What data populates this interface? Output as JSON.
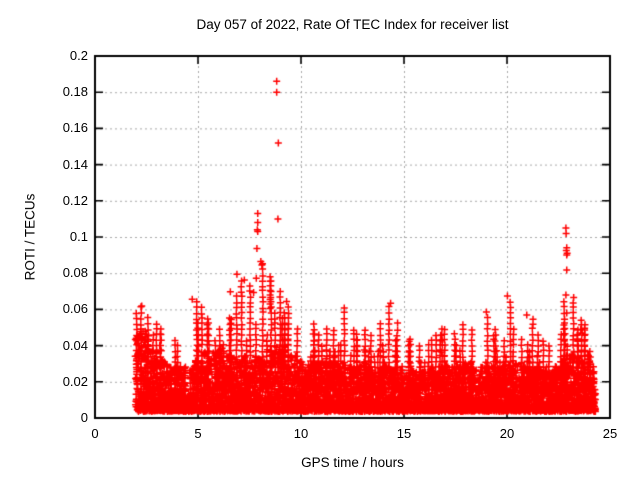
{
  "chart_data": {
    "type": "scatter",
    "title": "Day 057 of 2022, Rate Of TEC Index for receiver list",
    "xlabel": "GPS time / hours",
    "ylabel": "ROTI / TECUs",
    "xlim": [
      0,
      25
    ],
    "ylim": [
      0,
      0.2
    ],
    "xticks": [
      0,
      5,
      10,
      15,
      20,
      25
    ],
    "xtick_labels": [
      "0",
      "5",
      "10",
      "15",
      "20",
      "25"
    ],
    "yticks": [
      0,
      0.02,
      0.04,
      0.06,
      0.08,
      0.1,
      0.12,
      0.14,
      0.16,
      0.18,
      0.2
    ],
    "ytick_labels": [
      "0",
      "0.02",
      "0.04",
      "0.06",
      "0.08",
      "0.1",
      "0.12",
      "0.14",
      "0.16",
      "0.18",
      "0.2"
    ],
    "grid": {
      "on": true,
      "style": "dashed",
      "color": "#a8a8a8"
    },
    "legend": "none",
    "colors": {
      "marker": "#ff0000",
      "axis": "#000000",
      "text": "#000000",
      "background": "#ffffff"
    },
    "series": [
      {
        "name": "ROTI",
        "marker": "plus",
        "color": "#ff0000",
        "time_span_hours": [
          1.95,
          24.3
        ],
        "bins_format": [
          "t_start_hours",
          "t_width_hours",
          "dense_band_top_TECU",
          "spike_top_TECU"
        ],
        "density_bins": [
          [
            1.95,
            0.55,
            0.048,
            0.062
          ],
          [
            2.5,
            0.5,
            0.038,
            0.056
          ],
          [
            3.0,
            0.5,
            0.032,
            0.05
          ],
          [
            3.5,
            0.5,
            0.028,
            0.044
          ],
          [
            4.0,
            0.4,
            0.028,
            0.042
          ],
          [
            4.4,
            0.35,
            0.012,
            0.028
          ],
          [
            4.75,
            0.5,
            0.032,
            0.066
          ],
          [
            5.25,
            0.5,
            0.036,
            0.056
          ],
          [
            5.75,
            0.5,
            0.038,
            0.052
          ],
          [
            6.25,
            0.5,
            0.034,
            0.058
          ],
          [
            6.75,
            0.5,
            0.032,
            0.079
          ],
          [
            7.25,
            0.5,
            0.03,
            0.076
          ],
          [
            7.75,
            0.5,
            0.034,
            0.088
          ],
          [
            8.25,
            0.5,
            0.038,
            0.078
          ],
          [
            8.75,
            0.5,
            0.04,
            0.073
          ],
          [
            9.25,
            0.5,
            0.034,
            0.064
          ],
          [
            9.75,
            0.5,
            0.032,
            0.05
          ],
          [
            10.25,
            0.5,
            0.03,
            0.055
          ],
          [
            10.75,
            0.5,
            0.032,
            0.052
          ],
          [
            11.25,
            0.5,
            0.03,
            0.05
          ],
          [
            11.75,
            0.5,
            0.03,
            0.061
          ],
          [
            12.25,
            0.5,
            0.028,
            0.05
          ],
          [
            12.75,
            0.5,
            0.03,
            0.052
          ],
          [
            13.25,
            0.5,
            0.028,
            0.048
          ],
          [
            13.75,
            0.5,
            0.028,
            0.055
          ],
          [
            14.25,
            0.5,
            0.027,
            0.063
          ],
          [
            14.75,
            0.5,
            0.026,
            0.045
          ],
          [
            15.25,
            0.5,
            0.026,
            0.045
          ],
          [
            15.75,
            0.5,
            0.025,
            0.042
          ],
          [
            16.25,
            0.5,
            0.026,
            0.048
          ],
          [
            16.75,
            0.5,
            0.028,
            0.05
          ],
          [
            17.25,
            0.5,
            0.028,
            0.048
          ],
          [
            17.75,
            0.5,
            0.03,
            0.055
          ],
          [
            18.25,
            0.5,
            0.028,
            0.05
          ],
          [
            18.75,
            0.5,
            0.028,
            0.058
          ],
          [
            19.25,
            0.5,
            0.028,
            0.05
          ],
          [
            19.75,
            0.5,
            0.03,
            0.067
          ],
          [
            20.25,
            0.5,
            0.03,
            0.052
          ],
          [
            20.75,
            0.5,
            0.03,
            0.057
          ],
          [
            21.25,
            0.5,
            0.028,
            0.048
          ],
          [
            21.75,
            0.5,
            0.026,
            0.045
          ],
          [
            22.25,
            0.5,
            0.028,
            0.048
          ],
          [
            22.75,
            0.5,
            0.035,
            0.068
          ],
          [
            23.25,
            0.5,
            0.032,
            0.05
          ],
          [
            23.75,
            0.35,
            0.035,
            0.055
          ],
          [
            24.1,
            0.2,
            0.02,
            0.03
          ]
        ],
        "outliers": [
          [
            2.27,
            0.0619
          ],
          [
            4.72,
            0.0656
          ],
          [
            6.57,
            0.0698
          ],
          [
            6.89,
            0.0794
          ],
          [
            7.25,
            0.0762
          ],
          [
            7.7,
            0.0694
          ],
          [
            7.83,
            0.0772
          ],
          [
            7.86,
            0.0937
          ],
          [
            7.9,
            0.113
          ],
          [
            7.9,
            0.108
          ],
          [
            7.88,
            0.104
          ],
          [
            7.9,
            0.103
          ],
          [
            8.05,
            0.0865
          ],
          [
            8.1,
            0.0845
          ],
          [
            8.5,
            0.078
          ],
          [
            8.5,
            0.0755
          ],
          [
            8.5,
            0.073
          ],
          [
            8.5,
            0.0705
          ],
          [
            8.5,
            0.068
          ],
          [
            8.5,
            0.0655
          ],
          [
            8.5,
            0.063
          ],
          [
            8.5,
            0.0605
          ],
          [
            8.82,
            0.186
          ],
          [
            8.82,
            0.18
          ],
          [
            8.9,
            0.152
          ],
          [
            8.88,
            0.11
          ],
          [
            9.3,
            0.0643
          ],
          [
            12.1,
            0.0608
          ],
          [
            14.35,
            0.0634
          ],
          [
            19.0,
            0.0586
          ],
          [
            20.02,
            0.0674
          ],
          [
            20.96,
            0.0569
          ],
          [
            22.86,
            0.105
          ],
          [
            22.87,
            0.102
          ],
          [
            22.9,
            0.094
          ],
          [
            22.88,
            0.0925
          ],
          [
            22.92,
            0.091
          ],
          [
            22.9,
            0.09
          ],
          [
            22.9,
            0.0818
          ],
          [
            22.86,
            0.068
          ],
          [
            22.9,
            0.058
          ],
          [
            23.6,
            0.054
          ],
          [
            23.62,
            0.0515
          ],
          [
            23.58,
            0.049
          ],
          [
            23.65,
            0.047
          ]
        ]
      }
    ]
  }
}
